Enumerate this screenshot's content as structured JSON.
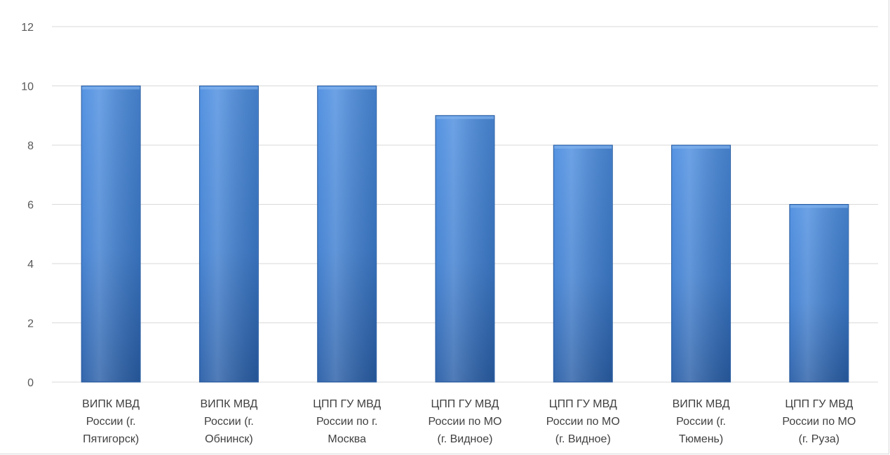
{
  "chart_data": {
    "type": "bar",
    "categories": [
      [
        "ВИПК МВД",
        "России (г.",
        "Пятигорск)"
      ],
      [
        "ВИПК МВД",
        "России  (г.",
        "Обнинск)"
      ],
      [
        "ЦПП ГУ МВД",
        "России по г.",
        "Москва"
      ],
      [
        "ЦПП ГУ МВД",
        "России по МО",
        "(г. Видное)"
      ],
      [
        "ЦПП ГУ МВД",
        "России по МО",
        "(г. Видное)"
      ],
      [
        "ВИПК МВД",
        "России (г.",
        "Тюмень)"
      ],
      [
        "ЦПП ГУ МВД",
        "России по МО",
        "(г. Руза)"
      ]
    ],
    "values": [
      10,
      10,
      10,
      9,
      8,
      8,
      6
    ],
    "y_ticks": [
      "0",
      "2",
      "4",
      "6",
      "8",
      "10",
      "12"
    ],
    "ylim": [
      0,
      12
    ],
    "grid": true,
    "title": "",
    "xlabel": "",
    "ylabel": "",
    "colors": {
      "bar_top": "#4d8ee0",
      "bar_mid": "#3f7fd1",
      "bar_bottom": "#2a5fa8",
      "bar_edge": "#2c5d9e",
      "gridline": "#d9d9d9"
    }
  }
}
